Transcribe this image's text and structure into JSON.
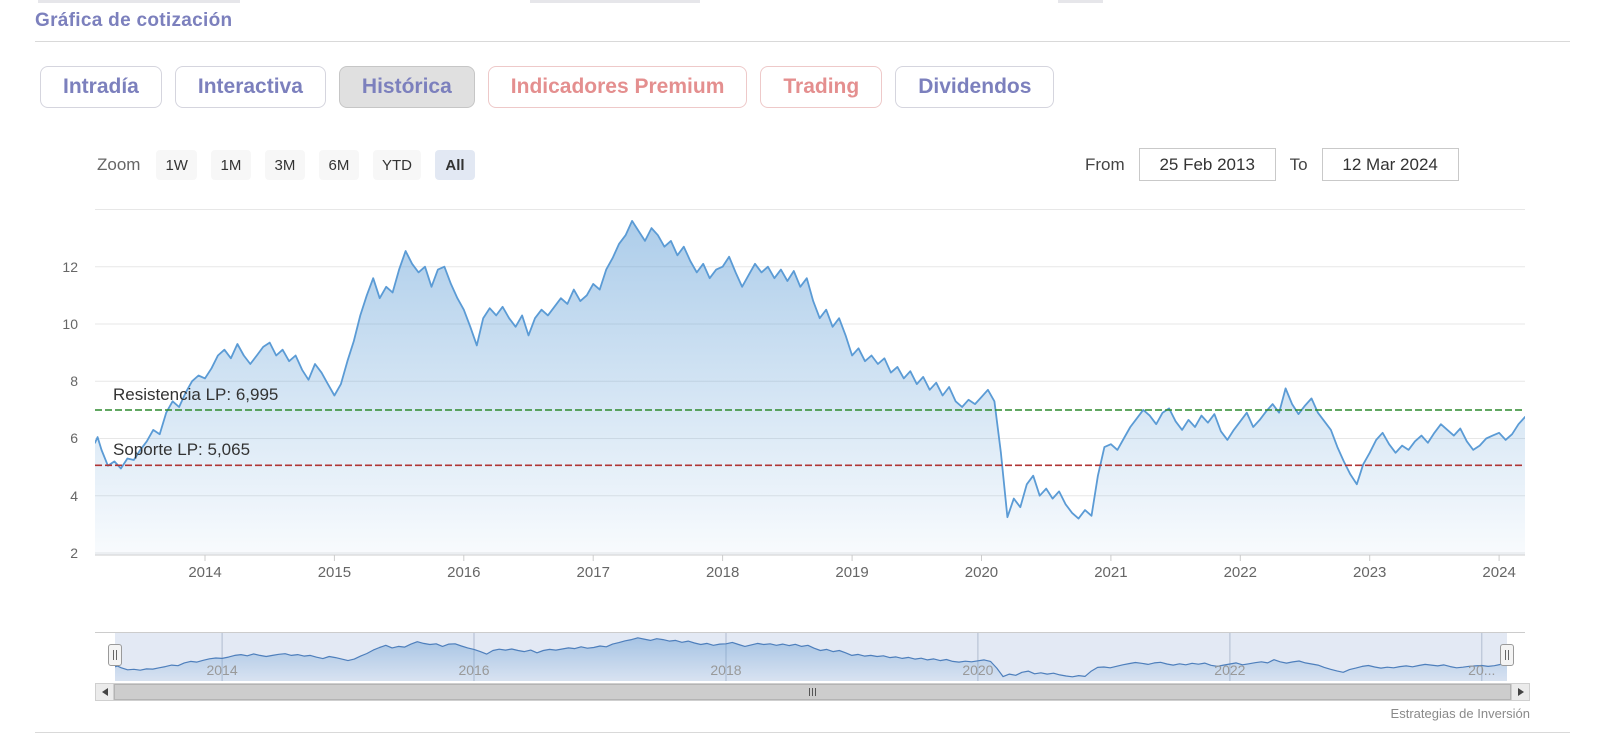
{
  "page": {
    "title": "Gráfica de cotización",
    "credit": "Estrategias de Inversión"
  },
  "tabs": [
    {
      "label": "Intradía",
      "style": "default",
      "active": false
    },
    {
      "label": "Interactiva",
      "style": "default",
      "active": false
    },
    {
      "label": "Histórica",
      "style": "default",
      "active": true
    },
    {
      "label": "Indicadores Premium",
      "style": "premium",
      "active": false
    },
    {
      "label": "Trading",
      "style": "premium",
      "active": false
    },
    {
      "label": "Dividendos",
      "style": "default",
      "active": false
    }
  ],
  "toolbar": {
    "zoom_label": "Zoom",
    "ranges": [
      "1W",
      "1M",
      "3M",
      "6M",
      "YTD",
      "All"
    ],
    "active_range": "All",
    "from_label": "From",
    "from_value": "25 Feb 2013",
    "to_label": "To",
    "to_value": "12 Mar 2024"
  },
  "chart_data": {
    "type": "area",
    "title": "Gráfica de cotización",
    "xlabel": "",
    "ylabel": "",
    "xlim": [
      2013.15,
      2024.2
    ],
    "ylim": [
      2,
      14.4
    ],
    "y_ticks": [
      2,
      4,
      6,
      8,
      10,
      12
    ],
    "y_grid": [
      2,
      4,
      6,
      8,
      10,
      12,
      14
    ],
    "x_ticks": [
      2014,
      2015,
      2016,
      2017,
      2018,
      2019,
      2020,
      2021,
      2022,
      2023,
      2024
    ],
    "grid": true,
    "legend": "none",
    "plotlines": [
      {
        "name": "resistencia",
        "label": "Resistencia LP: 6,995",
        "value": 6.995,
        "color": "#2d8a2d"
      },
      {
        "name": "soporte",
        "label": "Soporte LP: 5,065",
        "value": 5.065,
        "color": "#b03434"
      }
    ],
    "series": [
      {
        "name": "cotización",
        "points": [
          [
            2013.15,
            5.85
          ],
          [
            2013.17,
            6.05
          ],
          [
            2013.2,
            5.6
          ],
          [
            2013.25,
            5.05
          ],
          [
            2013.3,
            5.2
          ],
          [
            2013.35,
            4.95
          ],
          [
            2013.4,
            5.3
          ],
          [
            2013.45,
            5.25
          ],
          [
            2013.5,
            5.6
          ],
          [
            2013.55,
            5.9
          ],
          [
            2013.6,
            6.3
          ],
          [
            2013.65,
            6.15
          ],
          [
            2013.7,
            6.9
          ],
          [
            2013.75,
            7.3
          ],
          [
            2013.8,
            7.1
          ],
          [
            2013.85,
            7.6
          ],
          [
            2013.9,
            8.0
          ],
          [
            2013.95,
            8.2
          ],
          [
            2014.0,
            8.1
          ],
          [
            2014.05,
            8.45
          ],
          [
            2014.1,
            8.9
          ],
          [
            2014.15,
            9.1
          ],
          [
            2014.2,
            8.8
          ],
          [
            2014.25,
            9.3
          ],
          [
            2014.3,
            8.9
          ],
          [
            2014.35,
            8.6
          ],
          [
            2014.4,
            8.9
          ],
          [
            2014.45,
            9.2
          ],
          [
            2014.5,
            9.35
          ],
          [
            2014.55,
            8.9
          ],
          [
            2014.6,
            9.1
          ],
          [
            2014.65,
            8.7
          ],
          [
            2014.7,
            8.9
          ],
          [
            2014.75,
            8.4
          ],
          [
            2014.8,
            8.05
          ],
          [
            2014.85,
            8.6
          ],
          [
            2014.9,
            8.3
          ],
          [
            2014.95,
            7.9
          ],
          [
            2015.0,
            7.5
          ],
          [
            2015.05,
            7.9
          ],
          [
            2015.1,
            8.7
          ],
          [
            2015.15,
            9.4
          ],
          [
            2015.2,
            10.3
          ],
          [
            2015.25,
            11.0
          ],
          [
            2015.3,
            11.6
          ],
          [
            2015.35,
            10.9
          ],
          [
            2015.4,
            11.3
          ],
          [
            2015.45,
            11.1
          ],
          [
            2015.5,
            11.9
          ],
          [
            2015.55,
            12.55
          ],
          [
            2015.6,
            12.1
          ],
          [
            2015.65,
            11.8
          ],
          [
            2015.7,
            12.0
          ],
          [
            2015.75,
            11.3
          ],
          [
            2015.8,
            11.9
          ],
          [
            2015.85,
            12.0
          ],
          [
            2015.9,
            11.4
          ],
          [
            2015.95,
            10.9
          ],
          [
            2016.0,
            10.5
          ],
          [
            2016.05,
            9.9
          ],
          [
            2016.1,
            9.25
          ],
          [
            2016.15,
            10.2
          ],
          [
            2016.2,
            10.55
          ],
          [
            2016.25,
            10.3
          ],
          [
            2016.3,
            10.6
          ],
          [
            2016.35,
            10.2
          ],
          [
            2016.4,
            9.9
          ],
          [
            2016.45,
            10.3
          ],
          [
            2016.5,
            9.6
          ],
          [
            2016.55,
            10.2
          ],
          [
            2016.6,
            10.5
          ],
          [
            2016.65,
            10.3
          ],
          [
            2016.7,
            10.6
          ],
          [
            2016.75,
            10.9
          ],
          [
            2016.8,
            10.7
          ],
          [
            2016.85,
            11.2
          ],
          [
            2016.9,
            10.8
          ],
          [
            2016.95,
            11.0
          ],
          [
            2017.0,
            11.4
          ],
          [
            2017.05,
            11.2
          ],
          [
            2017.1,
            11.9
          ],
          [
            2017.15,
            12.3
          ],
          [
            2017.2,
            12.8
          ],
          [
            2017.25,
            13.1
          ],
          [
            2017.3,
            13.6
          ],
          [
            2017.35,
            13.25
          ],
          [
            2017.4,
            12.9
          ],
          [
            2017.45,
            13.35
          ],
          [
            2017.5,
            13.1
          ],
          [
            2017.55,
            12.7
          ],
          [
            2017.6,
            12.9
          ],
          [
            2017.65,
            12.4
          ],
          [
            2017.7,
            12.7
          ],
          [
            2017.75,
            12.2
          ],
          [
            2017.8,
            11.8
          ],
          [
            2017.85,
            12.1
          ],
          [
            2017.9,
            11.6
          ],
          [
            2017.95,
            11.9
          ],
          [
            2018.0,
            12.0
          ],
          [
            2018.05,
            12.35
          ],
          [
            2018.1,
            11.8
          ],
          [
            2018.15,
            11.3
          ],
          [
            2018.2,
            11.7
          ],
          [
            2018.25,
            12.1
          ],
          [
            2018.3,
            11.8
          ],
          [
            2018.35,
            12.0
          ],
          [
            2018.4,
            11.6
          ],
          [
            2018.45,
            11.9
          ],
          [
            2018.5,
            11.5
          ],
          [
            2018.55,
            11.85
          ],
          [
            2018.6,
            11.3
          ],
          [
            2018.65,
            11.6
          ],
          [
            2018.7,
            10.8
          ],
          [
            2018.75,
            10.2
          ],
          [
            2018.8,
            10.5
          ],
          [
            2018.85,
            9.9
          ],
          [
            2018.9,
            10.2
          ],
          [
            2018.95,
            9.6
          ],
          [
            2019.0,
            8.9
          ],
          [
            2019.05,
            9.15
          ],
          [
            2019.1,
            8.7
          ],
          [
            2019.15,
            8.9
          ],
          [
            2019.2,
            8.6
          ],
          [
            2019.25,
            8.8
          ],
          [
            2019.3,
            8.3
          ],
          [
            2019.35,
            8.5
          ],
          [
            2019.4,
            8.1
          ],
          [
            2019.45,
            8.35
          ],
          [
            2019.5,
            7.9
          ],
          [
            2019.55,
            8.15
          ],
          [
            2019.6,
            7.7
          ],
          [
            2019.65,
            7.95
          ],
          [
            2019.7,
            7.5
          ],
          [
            2019.75,
            7.8
          ],
          [
            2019.8,
            7.3
          ],
          [
            2019.85,
            7.1
          ],
          [
            2019.9,
            7.35
          ],
          [
            2019.95,
            7.2
          ],
          [
            2020.0,
            7.45
          ],
          [
            2020.05,
            7.7
          ],
          [
            2020.1,
            7.3
          ],
          [
            2020.15,
            5.5
          ],
          [
            2020.2,
            3.25
          ],
          [
            2020.25,
            3.9
          ],
          [
            2020.3,
            3.6
          ],
          [
            2020.35,
            4.4
          ],
          [
            2020.4,
            4.7
          ],
          [
            2020.45,
            4.0
          ],
          [
            2020.5,
            4.25
          ],
          [
            2020.55,
            3.9
          ],
          [
            2020.6,
            4.15
          ],
          [
            2020.65,
            3.7
          ],
          [
            2020.7,
            3.4
          ],
          [
            2020.75,
            3.2
          ],
          [
            2020.8,
            3.5
          ],
          [
            2020.85,
            3.3
          ],
          [
            2020.9,
            4.7
          ],
          [
            2020.95,
            5.7
          ],
          [
            2021.0,
            5.8
          ],
          [
            2021.05,
            5.6
          ],
          [
            2021.1,
            6.0
          ],
          [
            2021.15,
            6.4
          ],
          [
            2021.2,
            6.7
          ],
          [
            2021.25,
            7.0
          ],
          [
            2021.3,
            6.8
          ],
          [
            2021.35,
            6.5
          ],
          [
            2021.4,
            6.9
          ],
          [
            2021.45,
            7.05
          ],
          [
            2021.5,
            6.6
          ],
          [
            2021.55,
            6.3
          ],
          [
            2021.6,
            6.65
          ],
          [
            2021.65,
            6.4
          ],
          [
            2021.7,
            6.8
          ],
          [
            2021.75,
            6.55
          ],
          [
            2021.8,
            6.85
          ],
          [
            2021.85,
            6.25
          ],
          [
            2021.9,
            5.95
          ],
          [
            2021.95,
            6.3
          ],
          [
            2022.0,
            6.6
          ],
          [
            2022.05,
            6.9
          ],
          [
            2022.1,
            6.4
          ],
          [
            2022.15,
            6.65
          ],
          [
            2022.2,
            6.95
          ],
          [
            2022.25,
            7.2
          ],
          [
            2022.3,
            6.9
          ],
          [
            2022.35,
            7.75
          ],
          [
            2022.4,
            7.2
          ],
          [
            2022.45,
            6.85
          ],
          [
            2022.5,
            7.15
          ],
          [
            2022.55,
            7.4
          ],
          [
            2022.6,
            6.9
          ],
          [
            2022.65,
            6.6
          ],
          [
            2022.7,
            6.3
          ],
          [
            2022.75,
            5.7
          ],
          [
            2022.8,
            5.2
          ],
          [
            2022.85,
            4.75
          ],
          [
            2022.9,
            4.4
          ],
          [
            2022.95,
            5.1
          ],
          [
            2023.0,
            5.5
          ],
          [
            2023.05,
            5.95
          ],
          [
            2023.1,
            6.2
          ],
          [
            2023.15,
            5.8
          ],
          [
            2023.2,
            5.5
          ],
          [
            2023.25,
            5.75
          ],
          [
            2023.3,
            5.6
          ],
          [
            2023.35,
            5.9
          ],
          [
            2023.4,
            6.1
          ],
          [
            2023.45,
            5.85
          ],
          [
            2023.5,
            6.2
          ],
          [
            2023.55,
            6.5
          ],
          [
            2023.6,
            6.3
          ],
          [
            2023.65,
            6.1
          ],
          [
            2023.7,
            6.35
          ],
          [
            2023.75,
            5.9
          ],
          [
            2023.8,
            5.6
          ],
          [
            2023.85,
            5.75
          ],
          [
            2023.9,
            6.0
          ],
          [
            2023.95,
            6.1
          ],
          [
            2024.0,
            6.2
          ],
          [
            2024.05,
            5.95
          ],
          [
            2024.1,
            6.15
          ],
          [
            2024.15,
            6.5
          ],
          [
            2024.2,
            6.75
          ]
        ]
      }
    ],
    "navigator": {
      "ylim": [
        2.6,
        13.8
      ],
      "grid_years": [
        2014,
        2016,
        2018,
        2020,
        2022,
        2024
      ],
      "labels": [
        {
          "year": 2014,
          "label": "2014"
        },
        {
          "year": 2016,
          "label": "2016"
        },
        {
          "year": 2018,
          "label": "2018"
        },
        {
          "year": 2020,
          "label": "2020"
        },
        {
          "year": 2022,
          "label": "2022"
        },
        {
          "year": 2024,
          "label": "20..."
        }
      ]
    }
  },
  "colors": {
    "accent_purple": "#7c80bd",
    "premium_salmon": "#e48f8f",
    "line_blue": "#5b9bd5",
    "resistance_green": "#2d8a2d",
    "support_red": "#b03434"
  }
}
